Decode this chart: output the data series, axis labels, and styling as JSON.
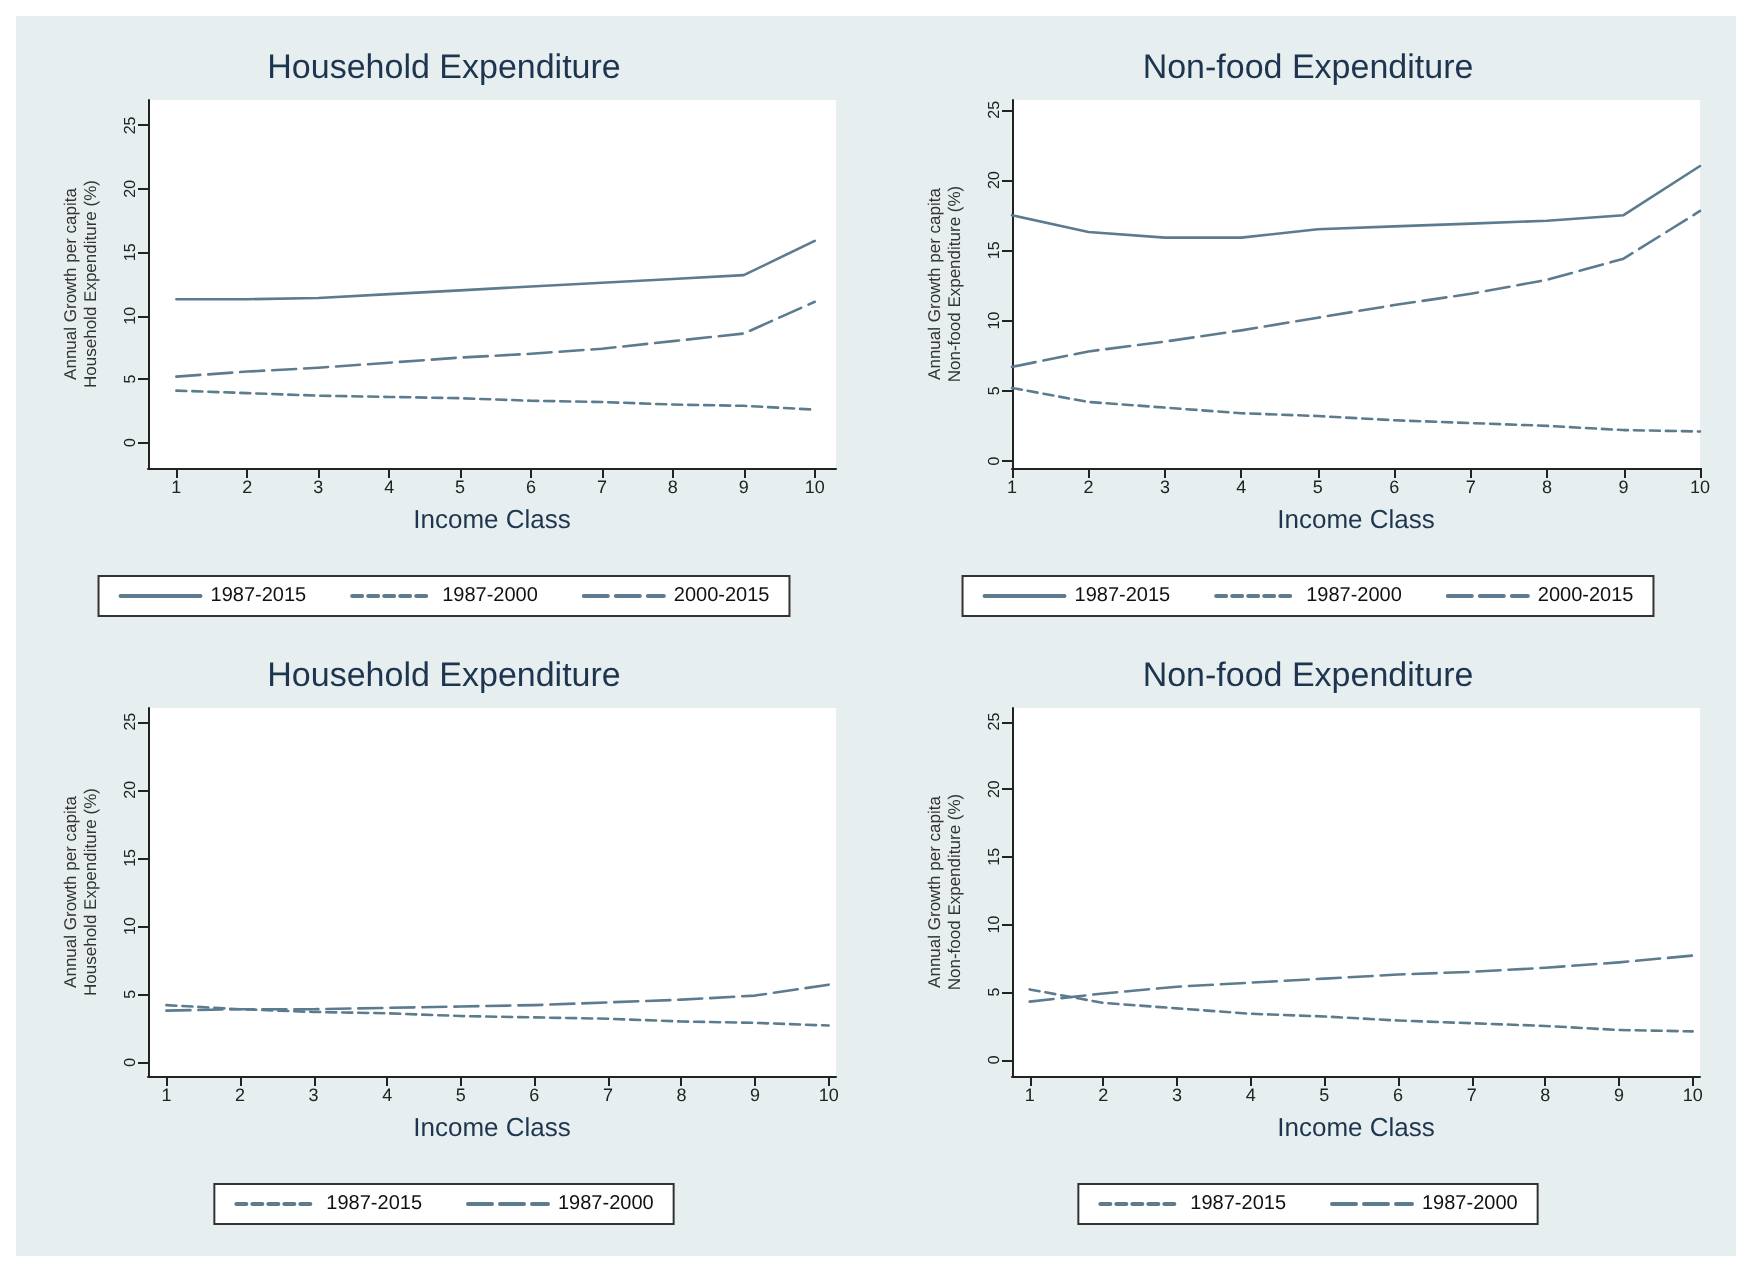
{
  "chart_data": [
    {
      "type": "line",
      "title": "Household Expenditure",
      "xlabel": "Income Class",
      "ylabel": "Annual Growth per capita\nHousehold Expenditure (%)",
      "x": [
        1,
        2,
        3,
        4,
        5,
        6,
        7,
        8,
        9,
        10
      ],
      "xlim": [
        0.6,
        10.3
      ],
      "xticks": [
        1,
        2,
        3,
        4,
        5,
        6,
        7,
        8,
        9,
        10
      ],
      "ylim": [
        -2,
        27
      ],
      "yticks": [
        0,
        5,
        10,
        15,
        20,
        25
      ],
      "grid": false,
      "legend": "bottom",
      "marker": "none",
      "series": [
        {
          "name": "1987-2015",
          "color": "#5d7b8e",
          "line_style": "solid",
          "values": [
            11.3,
            11.3,
            11.4,
            11.7,
            12.0,
            12.3,
            12.6,
            12.9,
            13.2,
            15.9
          ]
        },
        {
          "name": "1987-2000",
          "color": "#5d7b8e",
          "line_style": "dotted",
          "values": [
            4.1,
            3.9,
            3.7,
            3.6,
            3.5,
            3.3,
            3.2,
            3.0,
            2.9,
            2.6
          ]
        },
        {
          "name": "2000-2015",
          "color": "#5d7b8e",
          "line_style": "dashed",
          "values": [
            5.2,
            5.6,
            5.9,
            6.3,
            6.7,
            7.0,
            7.4,
            8.0,
            8.6,
            11.1
          ]
        }
      ]
    },
    {
      "type": "line",
      "title": "Non-food Expenditure",
      "xlabel": "Income Class",
      "ylabel": "Annual Growth per capita\nNon-food Expenditure (%)",
      "x": [
        1,
        2,
        3,
        4,
        5,
        6,
        7,
        8,
        9,
        10
      ],
      "xlim": [
        1,
        10
      ],
      "xticks": [
        1,
        2,
        3,
        4,
        5,
        6,
        7,
        8,
        9,
        10
      ],
      "ylim": [
        -0.5,
        25.7
      ],
      "yticks": [
        0,
        5,
        10,
        15,
        20,
        25
      ],
      "grid": false,
      "legend": "bottom",
      "marker": "none",
      "series": [
        {
          "name": "1987-2015",
          "color": "#5d7b8e",
          "line_style": "solid",
          "values": [
            17.5,
            16.3,
            15.9,
            15.9,
            16.5,
            16.7,
            16.9,
            17.1,
            17.5,
            21.0
          ]
        },
        {
          "name": "1987-2000",
          "color": "#5d7b8e",
          "line_style": "dotted",
          "values": [
            5.2,
            4.2,
            3.8,
            3.4,
            3.2,
            2.9,
            2.7,
            2.5,
            2.2,
            2.1
          ]
        },
        {
          "name": "2000-2015",
          "color": "#5d7b8e",
          "line_style": "dashed",
          "values": [
            6.7,
            7.8,
            8.5,
            9.3,
            10.2,
            11.1,
            11.9,
            12.9,
            14.4,
            17.8
          ]
        }
      ]
    },
    {
      "type": "line",
      "title": "Household Expenditure",
      "xlabel": "Income Class",
      "ylabel": "Annual Growth per capita\nHousehold Expenditure (%)",
      "x": [
        1,
        2,
        3,
        4,
        5,
        6,
        7,
        8,
        9,
        10
      ],
      "xlim": [
        0.75,
        10.1
      ],
      "xticks": [
        1,
        2,
        3,
        4,
        5,
        6,
        7,
        8,
        9,
        10
      ],
      "ylim": [
        -1,
        26
      ],
      "yticks": [
        0,
        5,
        10,
        15,
        20,
        25
      ],
      "grid": false,
      "legend": "bottom",
      "marker": "none",
      "series": [
        {
          "name": "1987-2015",
          "color": "#5d7b8e",
          "line_style": "dotted",
          "values": [
            4.2,
            3.9,
            3.7,
            3.6,
            3.4,
            3.3,
            3.2,
            3.0,
            2.9,
            2.7
          ]
        },
        {
          "name": "1987-2000",
          "color": "#5d7b8e",
          "line_style": "dashed",
          "values": [
            3.8,
            3.9,
            3.9,
            4.0,
            4.1,
            4.2,
            4.4,
            4.6,
            4.9,
            5.7
          ]
        }
      ]
    },
    {
      "type": "line",
      "title": "Non-food Expenditure",
      "xlabel": "Income Class",
      "ylabel": "Annual Growth per capita\nNon-food Expenditure (%)",
      "x": [
        1,
        2,
        3,
        4,
        5,
        6,
        7,
        8,
        9,
        10
      ],
      "xlim": [
        0.76,
        10.1
      ],
      "xticks": [
        1,
        2,
        3,
        4,
        5,
        6,
        7,
        8,
        9,
        10
      ],
      "ylim": [
        -1.2,
        26
      ],
      "yticks": [
        0,
        5,
        10,
        15,
        20,
        25
      ],
      "grid": false,
      "legend": "bottom",
      "marker": "none",
      "series": [
        {
          "name": "1987-2015",
          "color": "#5d7b8e",
          "line_style": "dotted",
          "values": [
            5.2,
            4.2,
            3.8,
            3.4,
            3.2,
            2.9,
            2.7,
            2.5,
            2.2,
            2.1
          ]
        },
        {
          "name": "1987-2000",
          "color": "#5d7b8e",
          "line_style": "dashed",
          "values": [
            4.3,
            4.9,
            5.4,
            5.7,
            6.0,
            6.3,
            6.5,
            6.8,
            7.2,
            7.7
          ]
        }
      ]
    }
  ]
}
